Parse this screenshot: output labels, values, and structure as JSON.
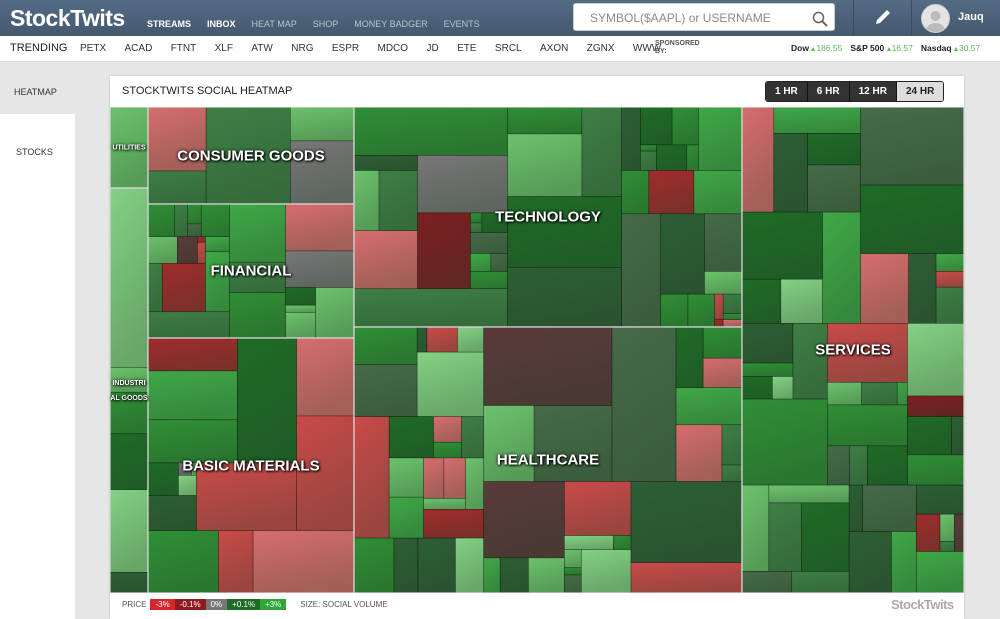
{
  "header": {
    "logo": "StockTwits",
    "nav": [
      "STREAMS",
      "INBOX",
      "HEAT MAP",
      "SHOP",
      "MONEY BADGER",
      "EVENTS"
    ],
    "search_placeholder": "SYMBOL($AAPL) or USERNAME",
    "user": "Jauq"
  },
  "trending": {
    "label": "TRENDING",
    "tickers": [
      "PETX",
      "ACAD",
      "FTNT",
      "XLF",
      "ATW",
      "NRG",
      "ESPR",
      "MDCO",
      "JD",
      "ETE",
      "SRCL",
      "AXON",
      "ZGNX",
      "WWW"
    ],
    "sponsored": "SPONSORED BY:",
    "indices": [
      {
        "name": "Dow",
        "change": "186.55"
      },
      {
        "name": "S&P 500",
        "change": "16.57"
      },
      {
        "name": "Nasdaq",
        "change": "30.57"
      }
    ]
  },
  "sidebar": {
    "items": [
      "HEATMAP",
      "STOCKS"
    ]
  },
  "heatmap": {
    "title": "STOCKTWITS SOCIAL HEATMAP",
    "timeframes": [
      "1 HR",
      "6 HR",
      "12 HR",
      "24 HR"
    ],
    "sectors": [
      {
        "label": "UTILITIES"
      },
      {
        "label": "CONSUMER GOODS"
      },
      {
        "label": "FINANCIAL"
      },
      {
        "label": "TECHNOLOGY"
      },
      {
        "label": "INDUSTRIAL GOODS"
      },
      {
        "label": "BASIC MATERIALS"
      },
      {
        "label": "HEALTHCARE"
      },
      {
        "label": "SERVICES"
      }
    ],
    "legend": {
      "price_label": "PRICE",
      "scale": [
        "-3%",
        "-0.1%",
        "0%",
        "+0.1%",
        "+3%"
      ],
      "size_label": "SIZE: SOCIAL VOLUME"
    },
    "footer_logo": "StockTwits"
  }
}
